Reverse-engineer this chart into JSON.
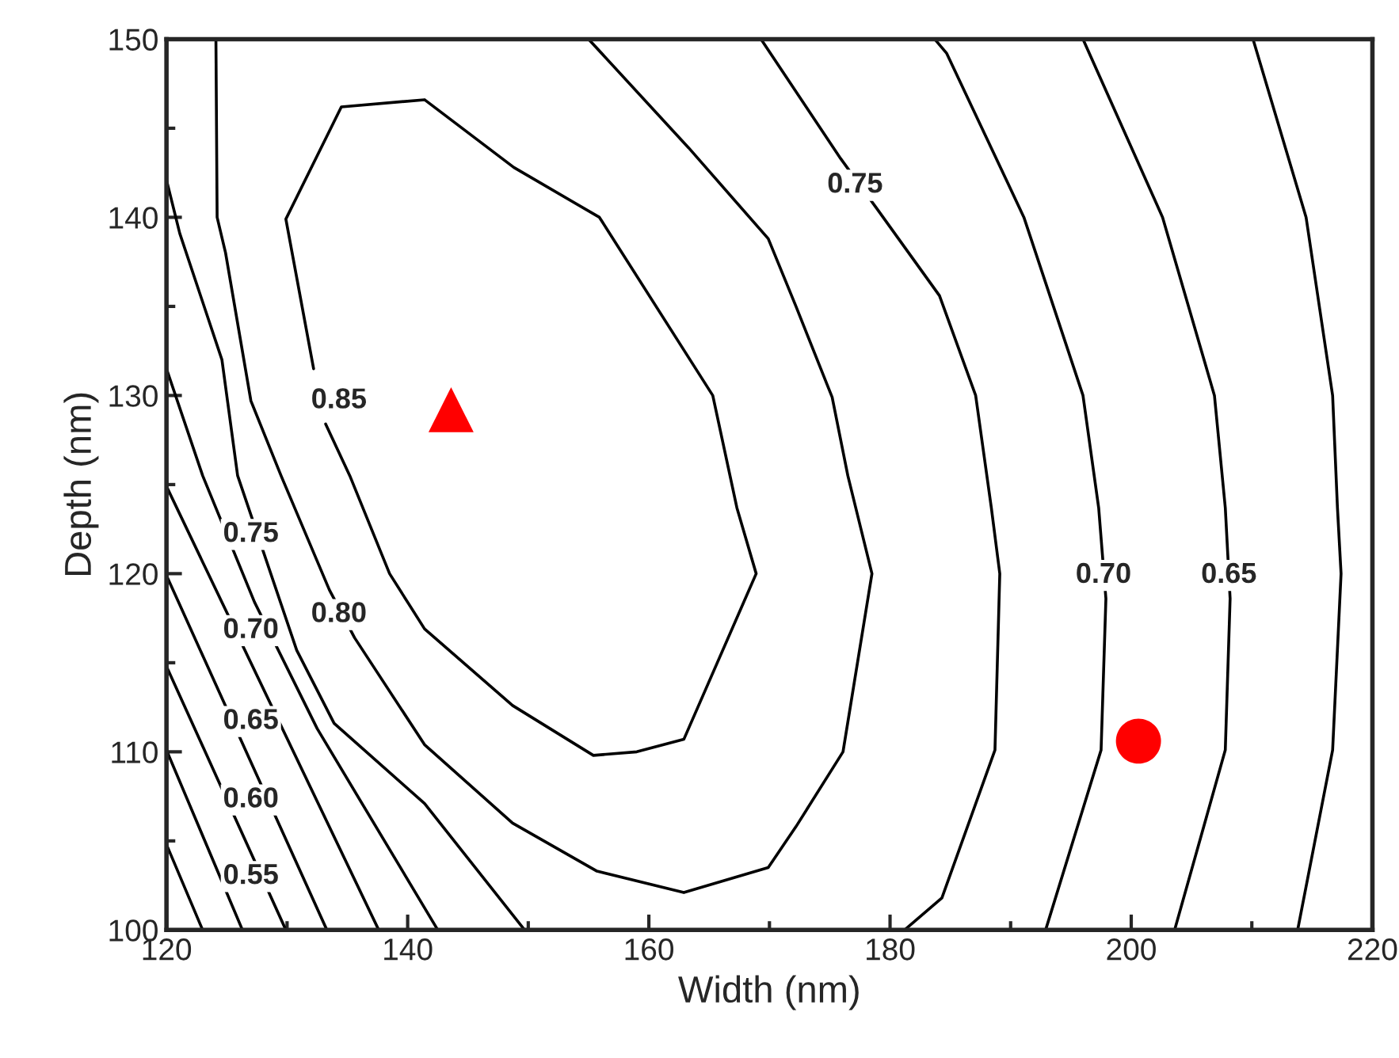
{
  "chart_data": {
    "type": "line",
    "xlabel": "Width (nm)",
    "ylabel": "Depth (nm)",
    "xlim": [
      120,
      220
    ],
    "xticks": [
      120,
      140,
      160,
      180,
      200,
      220
    ],
    "ylim": [
      100,
      150
    ],
    "yticks": [
      100,
      110,
      120,
      130,
      140,
      150
    ],
    "grid": false,
    "legend": false,
    "line_style": "solid",
    "marker": "none",
    "series": [
      {
        "color": "#000000",
        "x": [
          120,
          123.0
        ],
        "values": [
          104.8,
          100
        ]
      },
      {
        "color": "#000000",
        "x": [
          120,
          126.3
        ],
        "values": [
          110.1,
          100
        ]
      },
      {
        "color": "#000000",
        "x": [
          120,
          129.9
        ],
        "values": [
          114.8,
          100
        ]
      },
      {
        "color": "#000000",
        "x": [
          120,
          133.3
        ],
        "values": [
          119.9,
          100
        ]
      },
      {
        "color": "#000000",
        "x": [
          120,
          137.6
        ],
        "values": [
          124.9,
          100
        ]
      },
      {
        "color": "#000000",
        "x": [
          120,
          123.0,
          127.3,
          132.5,
          142.5
        ],
        "values": [
          131.5,
          125.5,
          118.4,
          111.3,
          100
        ]
      },
      {
        "color": "#000000",
        "x": [
          120,
          121.1,
          124.6,
          125.9,
          130.8,
          133.9,
          141.4,
          149.7
        ],
        "values": [
          142.1,
          139.1,
          132.0,
          125.5,
          115.7,
          111.6,
          107.1,
          100
        ]
      },
      {
        "color": "#000000",
        "x": [
          124.1,
          124.2,
          124.9,
          127.0,
          129.5,
          133.5,
          135.6,
          141.4,
          148.7,
          155.7,
          162.9,
          169.9,
          172.2,
          176.1,
          178.5,
          176.5,
          175.2,
          172.2,
          169.9,
          163.3,
          155.0
        ],
        "values": [
          150,
          140.0,
          138.0,
          129.7,
          125.5,
          119.1,
          116.4,
          110.4,
          106.0,
          103.3,
          102.1,
          103.5,
          105.8,
          110.0,
          120.0,
          125.5,
          129.9,
          135.0,
          138.8,
          143.9,
          150
        ]
      },
      {
        "color": "#000000",
        "x": [
          132.2,
          129.9,
          134.5,
          141.4,
          148.8,
          155.9,
          165.3,
          167.3,
          168.9,
          162.9,
          159.0,
          155.4,
          148.7,
          141.4,
          138.5,
          135.2,
          133.2
        ],
        "values": [
          131.5,
          139.9,
          146.2,
          146.6,
          142.8,
          140.0,
          130.0,
          123.7,
          120.0,
          110.7,
          110.0,
          109.8,
          112.6,
          116.9,
          120.0,
          125.5,
          128.4
        ]
      },
      {
        "color": "#000000",
        "x": [
          169.3,
          175.9,
          179.0,
          184.1,
          187.1,
          188.4,
          189.1,
          188.7,
          184.3,
          181.2
        ],
        "values": [
          150,
          143.3,
          140.4,
          135.6,
          130.0,
          123.7,
          120.0,
          110.1,
          101.8,
          100
        ]
      },
      {
        "color": "#000000",
        "x": [
          183.7,
          184.7,
          191.1,
          196.0,
          197.3,
          197.9,
          197.5,
          192.9
        ],
        "values": [
          150,
          149.2,
          140.0,
          130.0,
          123.7,
          118.6,
          110.1,
          100
        ]
      },
      {
        "color": "#000000",
        "x": [
          196.0,
          202.6,
          206.9,
          207.8,
          208.2,
          207.8,
          203.6
        ],
        "values": [
          150,
          140.0,
          130.0,
          123.7,
          118.6,
          110.1,
          100
        ]
      },
      {
        "color": "#000000",
        "x": [
          210.1,
          214.5,
          216.7,
          217.1,
          217.4,
          216.7,
          213.8
        ],
        "values": [
          150,
          140.0,
          130.0,
          123.7,
          120.0,
          110.1,
          100
        ]
      },
      {
        "type": "scatter",
        "marker": "triangle",
        "color": "#ff0000",
        "x": [
          143.6
        ],
        "values": [
          129.2
        ]
      },
      {
        "type": "scatter",
        "marker": "circle",
        "color": "#ff0000",
        "x": [
          200.6
        ],
        "values": [
          110.6
        ]
      }
    ],
    "annotations": [
      {
        "text": "0.85",
        "x": 134.3,
        "y": 129.7
      },
      {
        "text": "0.75",
        "x": 177.1,
        "y": 141.8
      },
      {
        "text": "0.70",
        "x": 197.7,
        "y": 119.9
      },
      {
        "text": "0.65",
        "x": 208.1,
        "y": 119.9
      },
      {
        "text": "0.80",
        "x": 134.3,
        "y": 117.7
      },
      {
        "text": "0.75",
        "x": 127.0,
        "y": 122.2
      },
      {
        "text": "0.70",
        "x": 127.0,
        "y": 116.8
      },
      {
        "text": "0.65",
        "x": 127.0,
        "y": 111.7
      },
      {
        "text": "0.60",
        "x": 127.0,
        "y": 107.3
      },
      {
        "text": "0.55",
        "x": 127.0,
        "y": 103.0
      }
    ]
  }
}
